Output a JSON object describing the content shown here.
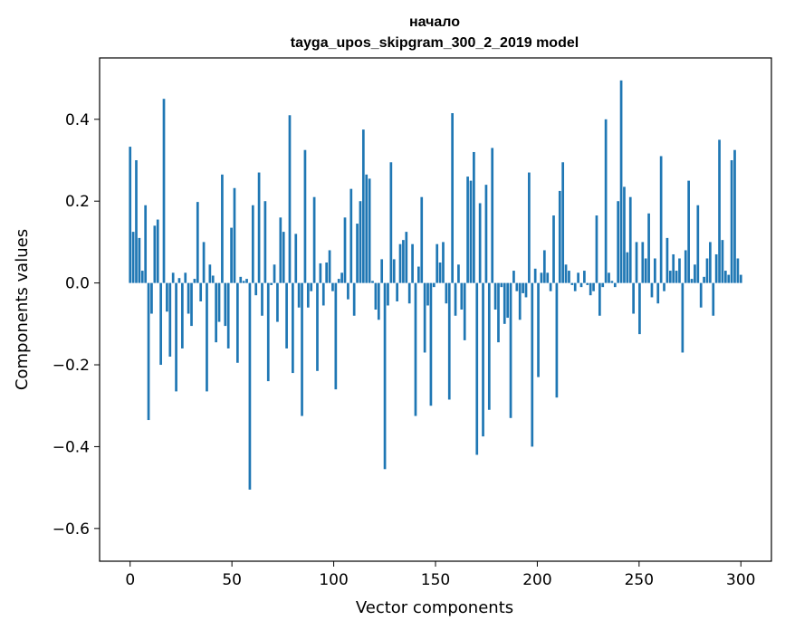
{
  "chart_data": {
    "type": "bar",
    "title_line1": "начало",
    "title_line2": "tayga_upos_skipgram_300_2_2019 model",
    "xlabel": "Vector components",
    "ylabel": "Components values",
    "xlim": [
      -15,
      315
    ],
    "ylim": [
      -0.68,
      0.55
    ],
    "xticks": [
      0,
      50,
      100,
      150,
      200,
      250,
      300
    ],
    "xtick_labels": [
      "0",
      "50",
      "100",
      "150",
      "200",
      "250",
      "300"
    ],
    "yticks": [
      0.4,
      0.2,
      0.0,
      -0.2,
      -0.4,
      -0.6
    ],
    "ytick_labels": [
      "0.4",
      "0.2",
      "0.0",
      "−0.2",
      "−0.4",
      "−0.6"
    ],
    "color": "#1f77b4",
    "values": [
      0.333,
      0.125,
      0.3,
      0.11,
      0.03,
      0.19,
      -0.335,
      -0.075,
      0.14,
      0.155,
      -0.2,
      0.45,
      -0.07,
      -0.18,
      0.025,
      -0.265,
      0.012,
      -0.16,
      0.025,
      -0.075,
      -0.105,
      0.01,
      0.198,
      -0.045,
      0.1,
      -0.265,
      0.045,
      0.018,
      -0.145,
      -0.095,
      0.265,
      -0.105,
      -0.16,
      0.135,
      0.232,
      -0.195,
      0.015,
      0.005,
      0.01,
      -0.505,
      0.19,
      -0.03,
      0.27,
      -0.08,
      0.2,
      -0.24,
      -0.005,
      0.045,
      -0.095,
      0.16,
      0.125,
      -0.16,
      0.41,
      -0.22,
      0.12,
      -0.06,
      -0.325,
      0.325,
      -0.06,
      -0.02,
      0.21,
      -0.215,
      0.048,
      -0.055,
      0.05,
      0.08,
      -0.02,
      -0.26,
      0.01,
      0.025,
      0.16,
      -0.04,
      0.23,
      -0.08,
      0.145,
      0.2,
      0.375,
      0.265,
      0.255,
      0.005,
      -0.065,
      -0.09,
      0.058,
      -0.455,
      -0.055,
      0.295,
      0.058,
      -0.045,
      0.095,
      0.105,
      0.125,
      -0.05,
      0.095,
      -0.325,
      0.04,
      0.21,
      -0.17,
      -0.055,
      -0.3,
      -0.01,
      0.095,
      0.05,
      0.1,
      -0.05,
      -0.285,
      0.415,
      -0.08,
      0.045,
      -0.065,
      -0.14,
      0.26,
      0.25,
      0.32,
      -0.42,
      0.195,
      -0.375,
      0.24,
      -0.31,
      0.33,
      -0.065,
      -0.145,
      -0.01,
      -0.1,
      -0.085,
      -0.33,
      0.03,
      -0.02,
      -0.09,
      -0.025,
      -0.035,
      0.27,
      -0.4,
      0.035,
      -0.23,
      0.025,
      0.08,
      0.025,
      -0.02,
      0.165,
      -0.28,
      0.225,
      0.295,
      0.045,
      0.03,
      -0.005,
      -0.02,
      0.025,
      -0.01,
      0.03,
      -0.005,
      -0.03,
      -0.02,
      0.165,
      -0.08,
      -0.01,
      0.4,
      0.025,
      0.005,
      -0.01,
      0.2,
      0.495,
      0.235,
      0.075,
      0.21,
      -0.075,
      0.1,
      -0.125,
      0.1,
      0.06,
      0.17,
      -0.035,
      0.06,
      -0.05,
      0.31,
      -0.02,
      0.11,
      0.03,
      0.07,
      0.03,
      0.06,
      -0.17,
      0.08,
      0.25,
      0.01,
      0.045,
      0.19,
      -0.06,
      0.015,
      0.06,
      0.1,
      -0.08,
      0.07,
      0.35,
      0.105,
      0.03,
      0.02,
      0.3,
      0.325,
      0.06,
      0.02
    ]
  }
}
